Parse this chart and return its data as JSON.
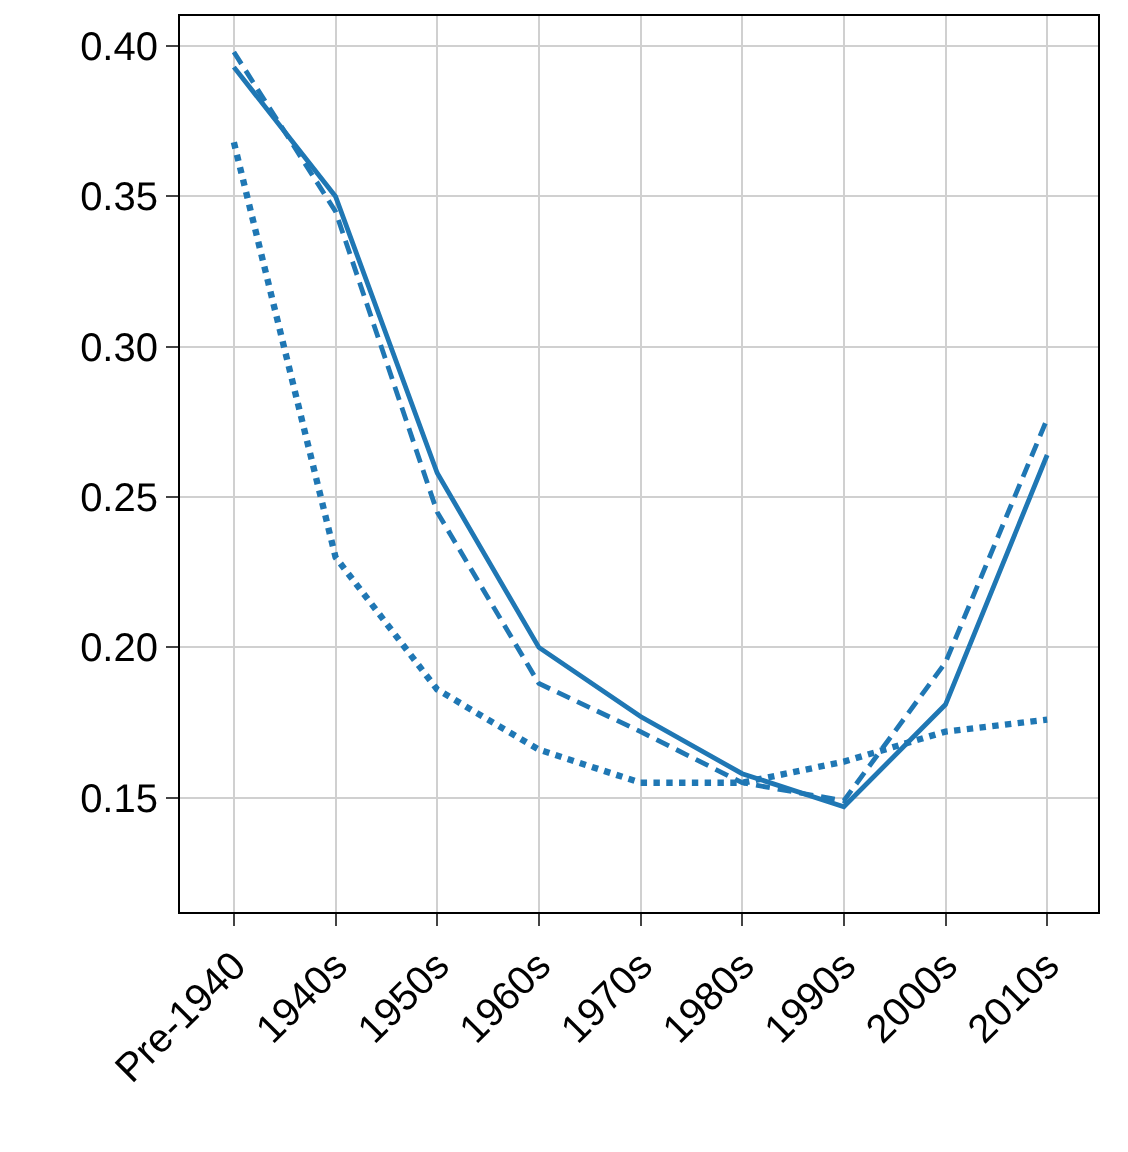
{
  "chart_data": {
    "type": "line",
    "categories": [
      "Pre-1940",
      "1940s",
      "1950s",
      "1960s",
      "1970s",
      "1980s",
      "1990s",
      "2000s",
      "2010s"
    ],
    "series": [
      {
        "color": "#1f77b4",
        "line_style": "solid",
        "values": [
          0.393,
          0.35,
          0.258,
          0.2,
          0.177,
          0.158,
          0.147,
          0.181,
          0.264
        ]
      },
      {
        "color": "#1f77b4",
        "line_style": "dashed",
        "values": [
          0.398,
          0.345,
          0.245,
          0.188,
          0.172,
          0.155,
          0.149,
          0.195,
          0.276
        ]
      },
      {
        "color": "#1f77b4",
        "line_style": "dotted",
        "values": [
          0.368,
          0.23,
          0.186,
          0.166,
          0.155,
          0.155,
          0.162,
          0.172,
          0.176
        ]
      }
    ],
    "ylim": [
      0.112,
      0.41
    ],
    "yticks": [
      {
        "value": 0.15,
        "label": "0.15"
      },
      {
        "value": 0.2,
        "label": "0.20"
      },
      {
        "value": 0.25,
        "label": "0.25"
      },
      {
        "value": 0.3,
        "label": "0.30"
      },
      {
        "value": 0.35,
        "label": "0.35"
      },
      {
        "value": 0.4,
        "label": "0.40"
      }
    ],
    "grid": true
  }
}
